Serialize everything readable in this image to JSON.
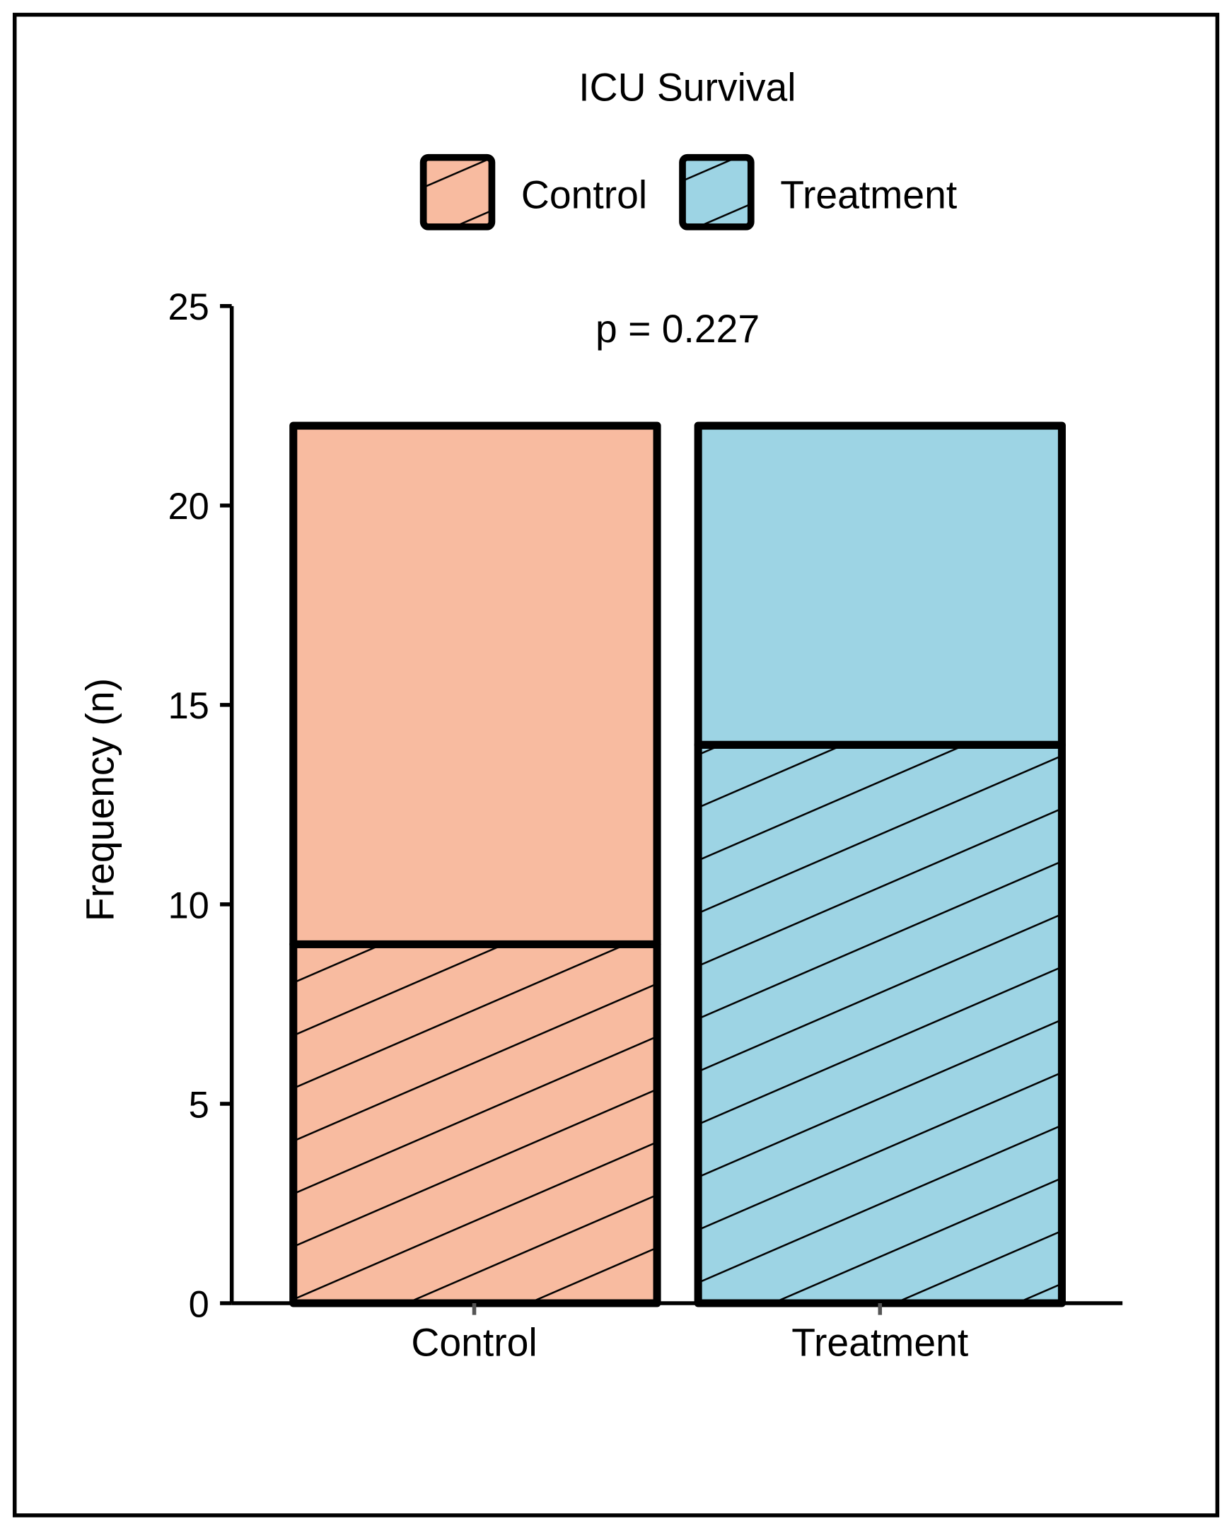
{
  "chart_data": {
    "type": "bar",
    "stacked": true,
    "title": "ICU Survival",
    "annotation": "p = 0.227",
    "xlabel": "",
    "ylabel": "Frequency (n)",
    "ylim": [
      0,
      25
    ],
    "yticks": [
      0,
      5,
      10,
      15,
      20,
      25
    ],
    "ytick_labels": [
      "0",
      "5",
      "10",
      "15",
      "20",
      "25"
    ],
    "categories": [
      "Control",
      "Treatment"
    ],
    "colors": [
      "#F8BBA0",
      "#9DD4E4"
    ],
    "legend": {
      "position": "top",
      "entries": [
        "Control",
        "Treatment"
      ]
    },
    "series": [
      {
        "pattern": "hatched",
        "values": [
          9,
          14
        ]
      },
      {
        "pattern": "solid",
        "values": [
          13,
          8
        ]
      }
    ],
    "grid": false
  }
}
